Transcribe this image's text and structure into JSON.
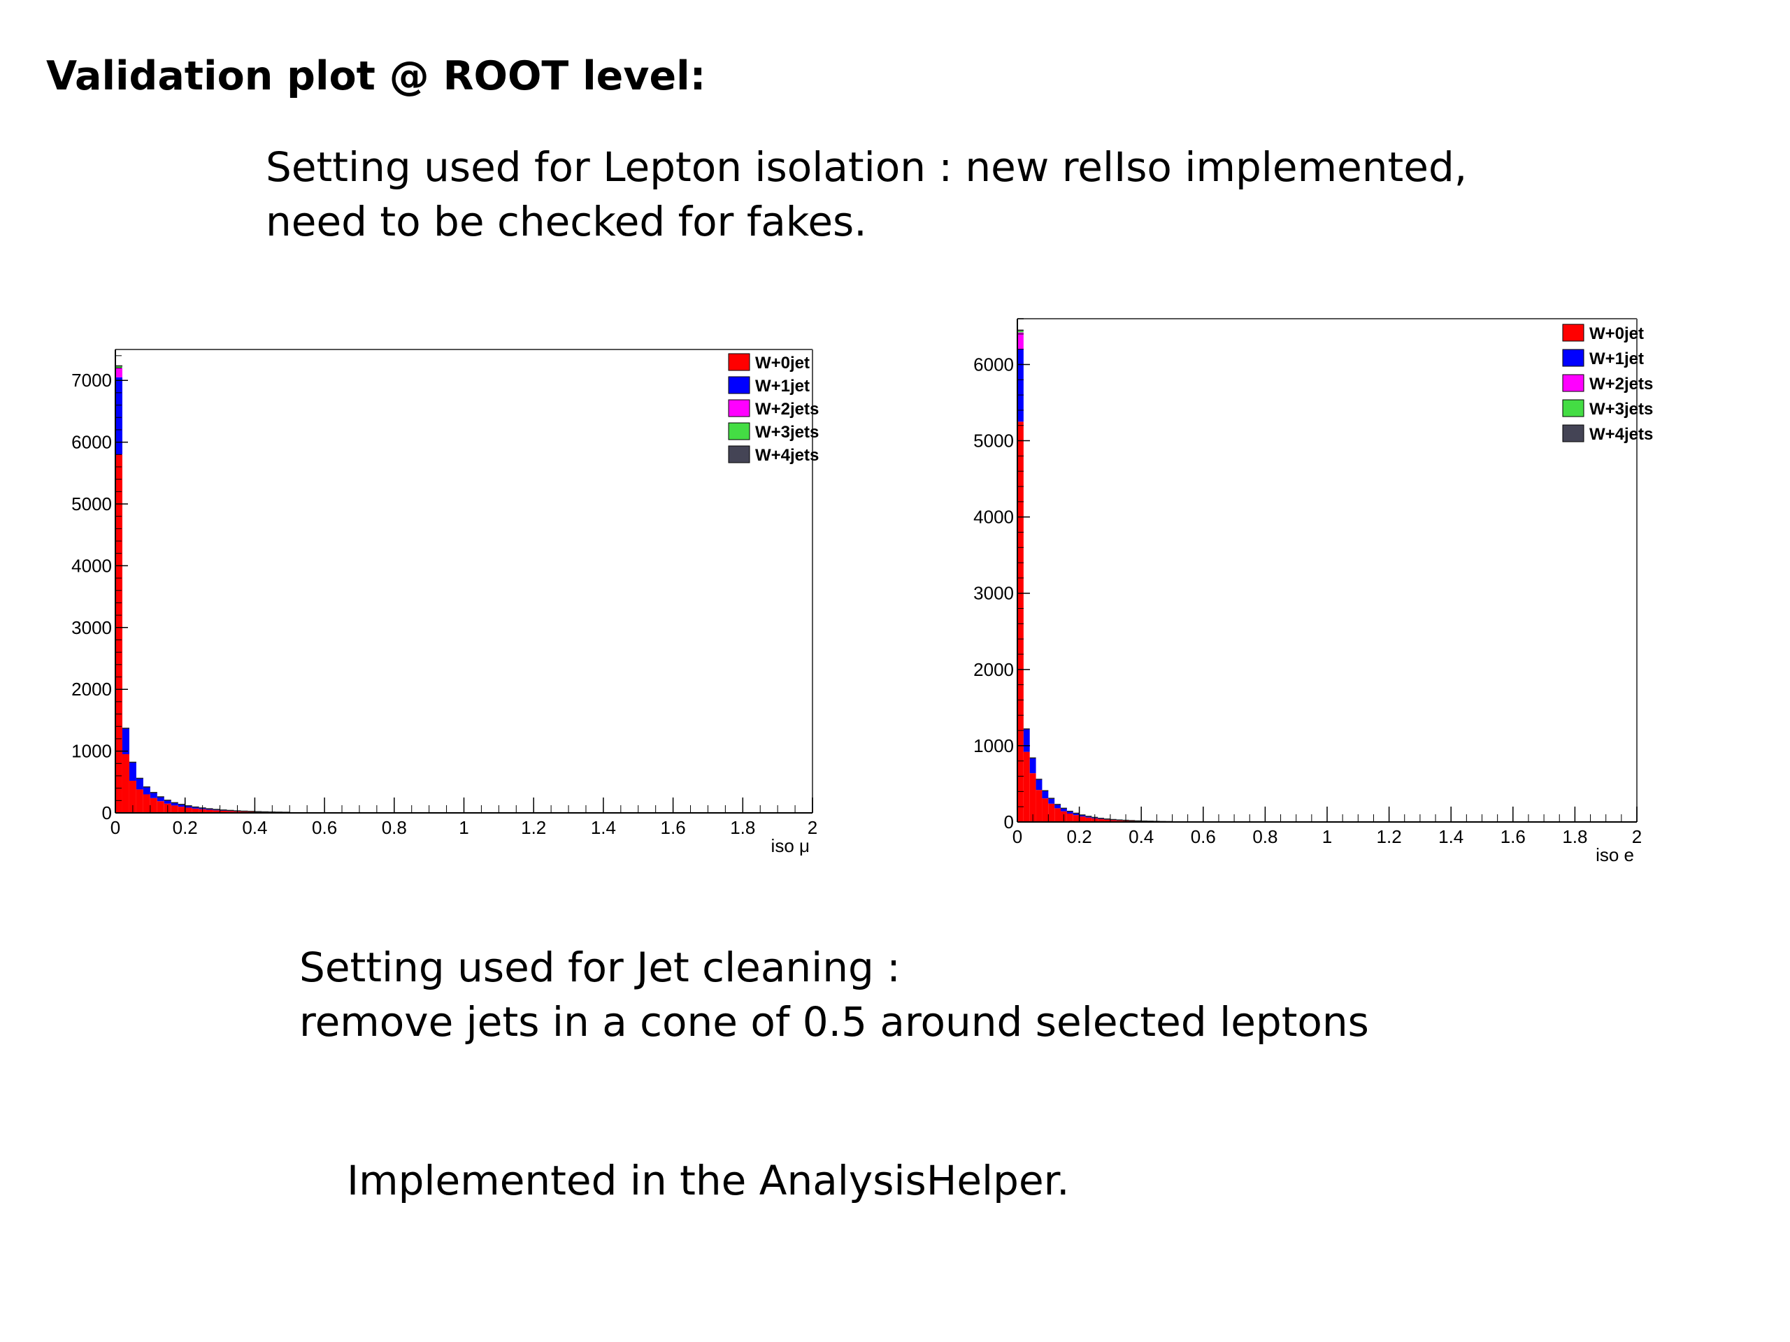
{
  "slide": {
    "title": "Validation plot @ ROOT level:",
    "lepton_iso_lines": [
      "Setting used for Lepton isolation : new relIso implemented,",
      "need to be checked for fakes."
    ],
    "jet_cleaning_lines": [
      "Setting used for Jet cleaning :",
      "remove jets in a cone of 0.5 around selected leptons"
    ],
    "footer": "Implemented in the AnalysisHelper."
  },
  "chart_data": [
    {
      "type": "bar",
      "stacked": true,
      "xlabel": "iso μ",
      "ylabel": "",
      "xlim": [
        0,
        2
      ],
      "ylim": [
        0,
        7500
      ],
      "x_ticks": [
        0,
        0.2,
        0.4,
        0.6,
        0.8,
        1,
        1.2,
        1.4,
        1.6,
        1.8,
        2
      ],
      "x_tick_labels": [
        "0",
        "0.2",
        "0.4",
        "0.6",
        "0.8",
        "1",
        "1.2",
        "1.4",
        "1.6",
        "1.8",
        "2"
      ],
      "y_ticks": [
        0,
        1000,
        2000,
        3000,
        4000,
        5000,
        6000,
        7000
      ],
      "y_tick_labels": [
        "0",
        "1000",
        "2000",
        "3000",
        "4000",
        "5000",
        "6000",
        "7000"
      ],
      "legend_position": "top-right",
      "bin_width": 0.02,
      "series": [
        {
          "name": "W+0jet",
          "color": "#ff0000",
          "values": [
            5800,
            950,
            520,
            380,
            300,
            240,
            190,
            150,
            120,
            100,
            85,
            70,
            60,
            50,
            42,
            35,
            30,
            25,
            21,
            18,
            15,
            13,
            11,
            9,
            8
          ]
        },
        {
          "name": "W+1jet",
          "color": "#0000ff",
          "values": [
            1250,
            420,
            300,
            180,
            120,
            90,
            70,
            55,
            45,
            38,
            30,
            25,
            20,
            17,
            14,
            12,
            10,
            8,
            7,
            6,
            5,
            4,
            3,
            3,
            2
          ]
        },
        {
          "name": "W+2jets",
          "color": "#ff00ff",
          "values": [
            150,
            0,
            0,
            0,
            0,
            0,
            0,
            0,
            0,
            0,
            0,
            0,
            0,
            0,
            0,
            0,
            0,
            0,
            0,
            0,
            0,
            0,
            0,
            0,
            0
          ]
        },
        {
          "name": "W+3jets",
          "color": "#44dd44",
          "values": [
            25,
            0,
            0,
            0,
            0,
            0,
            0,
            0,
            0,
            0,
            0,
            0,
            0,
            0,
            0,
            0,
            0,
            0,
            0,
            0,
            0,
            0,
            0,
            0,
            0
          ]
        },
        {
          "name": "W+4jets",
          "color": "#444455",
          "values": [
            10,
            0,
            0,
            0,
            0,
            0,
            0,
            0,
            0,
            0,
            0,
            0,
            0,
            0,
            0,
            0,
            0,
            0,
            0,
            0,
            0,
            0,
            0,
            0,
            0
          ]
        }
      ]
    },
    {
      "type": "bar",
      "stacked": true,
      "xlabel": "iso e",
      "ylabel": "",
      "xlim": [
        0,
        2
      ],
      "ylim": [
        0,
        6600
      ],
      "x_ticks": [
        0,
        0.2,
        0.4,
        0.6,
        0.8,
        1,
        1.2,
        1.4,
        1.6,
        1.8,
        2
      ],
      "x_tick_labels": [
        "0",
        "0.2",
        "0.4",
        "0.6",
        "0.8",
        "1",
        "1.2",
        "1.4",
        "1.6",
        "1.8",
        "2"
      ],
      "y_ticks": [
        0,
        1000,
        2000,
        3000,
        4000,
        5000,
        6000
      ],
      "y_tick_labels": [
        "0",
        "1000",
        "2000",
        "3000",
        "4000",
        "5000",
        "6000"
      ],
      "legend_position": "top-right",
      "bin_width": 0.02,
      "series": [
        {
          "name": "W+0jet",
          "color": "#ff0000",
          "values": [
            5250,
            920,
            640,
            420,
            310,
            240,
            180,
            140,
            110,
            90,
            72,
            58,
            47,
            38,
            31,
            25,
            20,
            17,
            14,
            11,
            9,
            8,
            6,
            5,
            4
          ]
        },
        {
          "name": "W+1jet",
          "color": "#0000ff",
          "values": [
            950,
            300,
            200,
            140,
            100,
            70,
            50,
            40,
            30,
            25,
            20,
            16,
            13,
            10,
            8,
            7,
            6,
            5,
            4,
            3,
            3,
            2,
            2,
            1,
            1
          ]
        },
        {
          "name": "W+2jets",
          "color": "#ff00ff",
          "values": [
            220,
            0,
            0,
            0,
            0,
            0,
            0,
            0,
            0,
            0,
            0,
            0,
            0,
            0,
            0,
            0,
            0,
            0,
            0,
            0,
            0,
            0,
            0,
            0,
            0
          ]
        },
        {
          "name": "W+3jets",
          "color": "#44dd44",
          "values": [
            20,
            0,
            0,
            0,
            0,
            0,
            0,
            0,
            0,
            0,
            0,
            0,
            0,
            0,
            0,
            0,
            0,
            0,
            0,
            0,
            0,
            0,
            0,
            0,
            0
          ]
        },
        {
          "name": "W+4jets",
          "color": "#444455",
          "values": [
            10,
            0,
            0,
            0,
            0,
            0,
            0,
            0,
            0,
            0,
            0,
            0,
            0,
            0,
            0,
            0,
            0,
            0,
            0,
            0,
            0,
            0,
            0,
            0,
            0
          ]
        }
      ]
    }
  ]
}
